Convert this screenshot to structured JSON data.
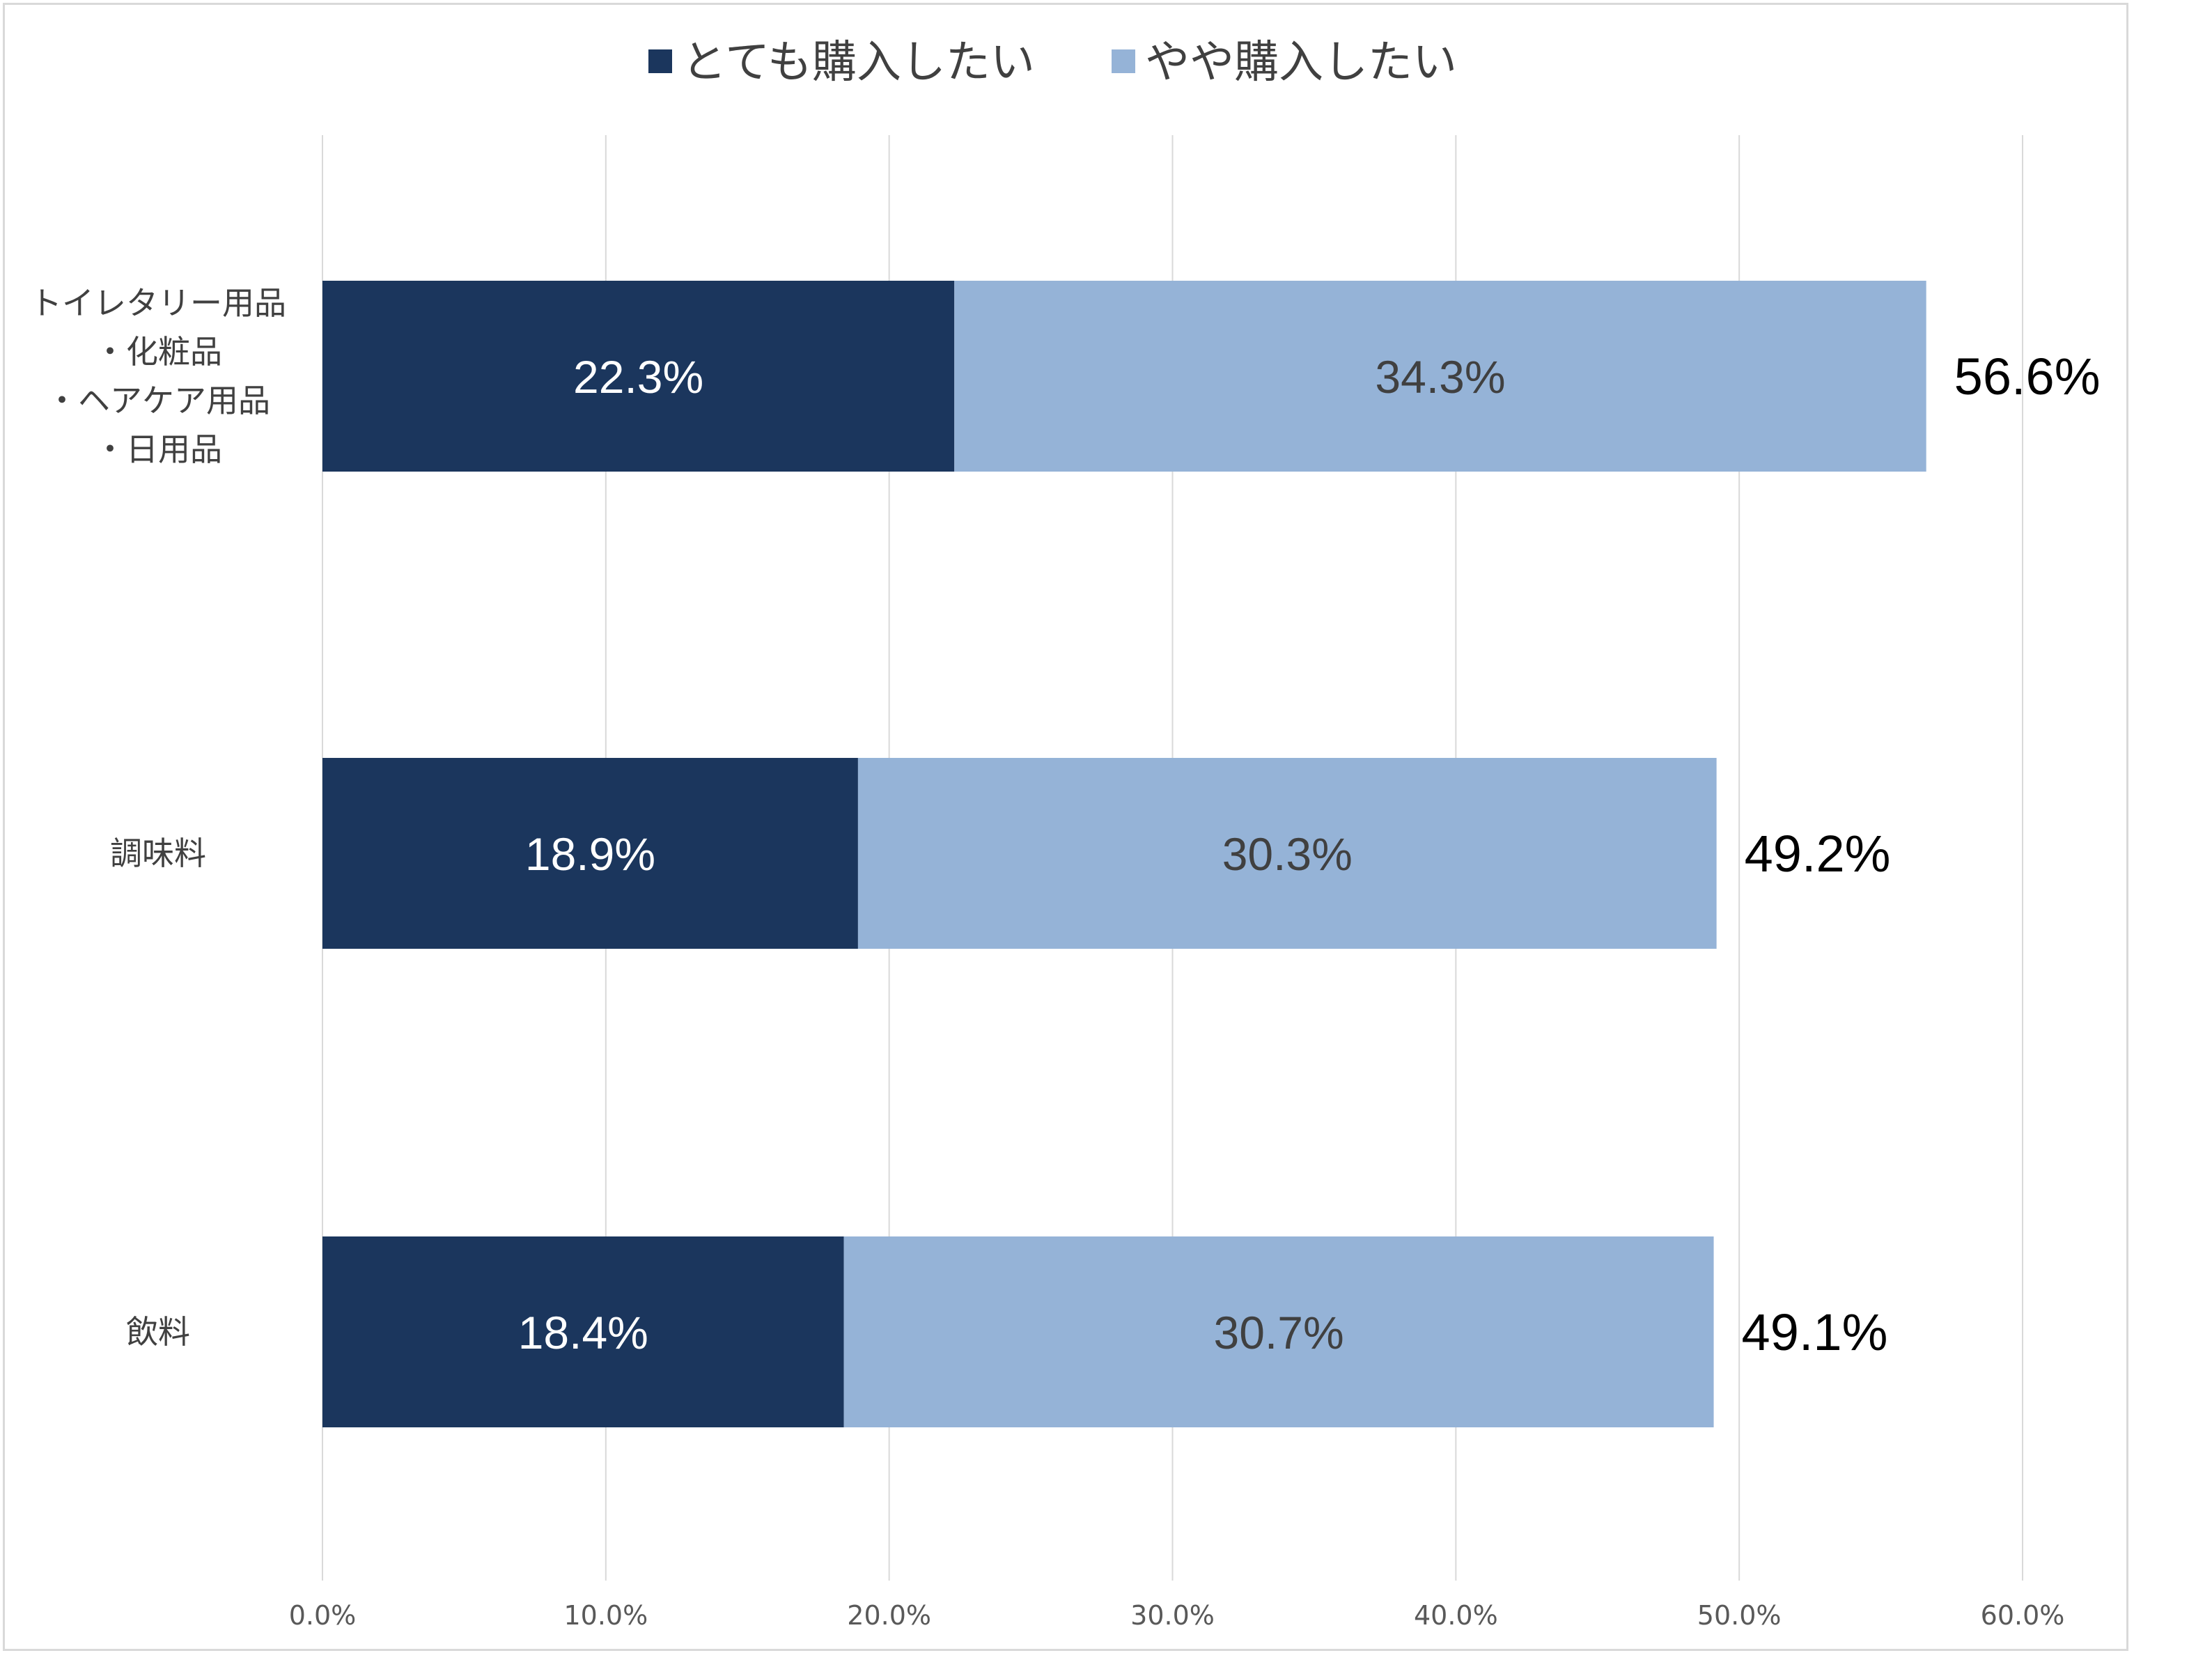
{
  "chart_data": {
    "type": "bar",
    "orientation": "horizontal",
    "stacked": true,
    "categories": [
      [
        "トイレタリー用品",
        "・化粧品",
        "・ヘアケア用品",
        "・日用品"
      ],
      [
        "調味料"
      ],
      [
        "飲料"
      ]
    ],
    "series": [
      {
        "name": "とても購入したい",
        "values": [
          22.3,
          18.9,
          18.4
        ],
        "labels": [
          "22.3%",
          "18.9%",
          "18.4%"
        ],
        "color": "#1b365d",
        "label_color": "#ffffff"
      },
      {
        "name": "やや購入したい",
        "values": [
          34.3,
          30.3,
          30.7
        ],
        "labels": [
          "34.3%",
          "30.3%",
          "30.7%"
        ],
        "color": "#95b3d7",
        "label_color": "#404040"
      }
    ],
    "totals": [
      "56.6%",
      "49.2%",
      "49.1%"
    ],
    "total_values": [
      56.6,
      49.2,
      49.1
    ],
    "xlim": [
      0,
      60
    ],
    "xticks": [
      "0.0%",
      "10.0%",
      "20.0%",
      "30.0%",
      "40.0%",
      "50.0%",
      "60.0%"
    ],
    "xtick_values": [
      0,
      10,
      20,
      30,
      40,
      50,
      60
    ],
    "grid": "vertical",
    "gridline_color": "#d9d9d9",
    "legend_position": "top"
  }
}
